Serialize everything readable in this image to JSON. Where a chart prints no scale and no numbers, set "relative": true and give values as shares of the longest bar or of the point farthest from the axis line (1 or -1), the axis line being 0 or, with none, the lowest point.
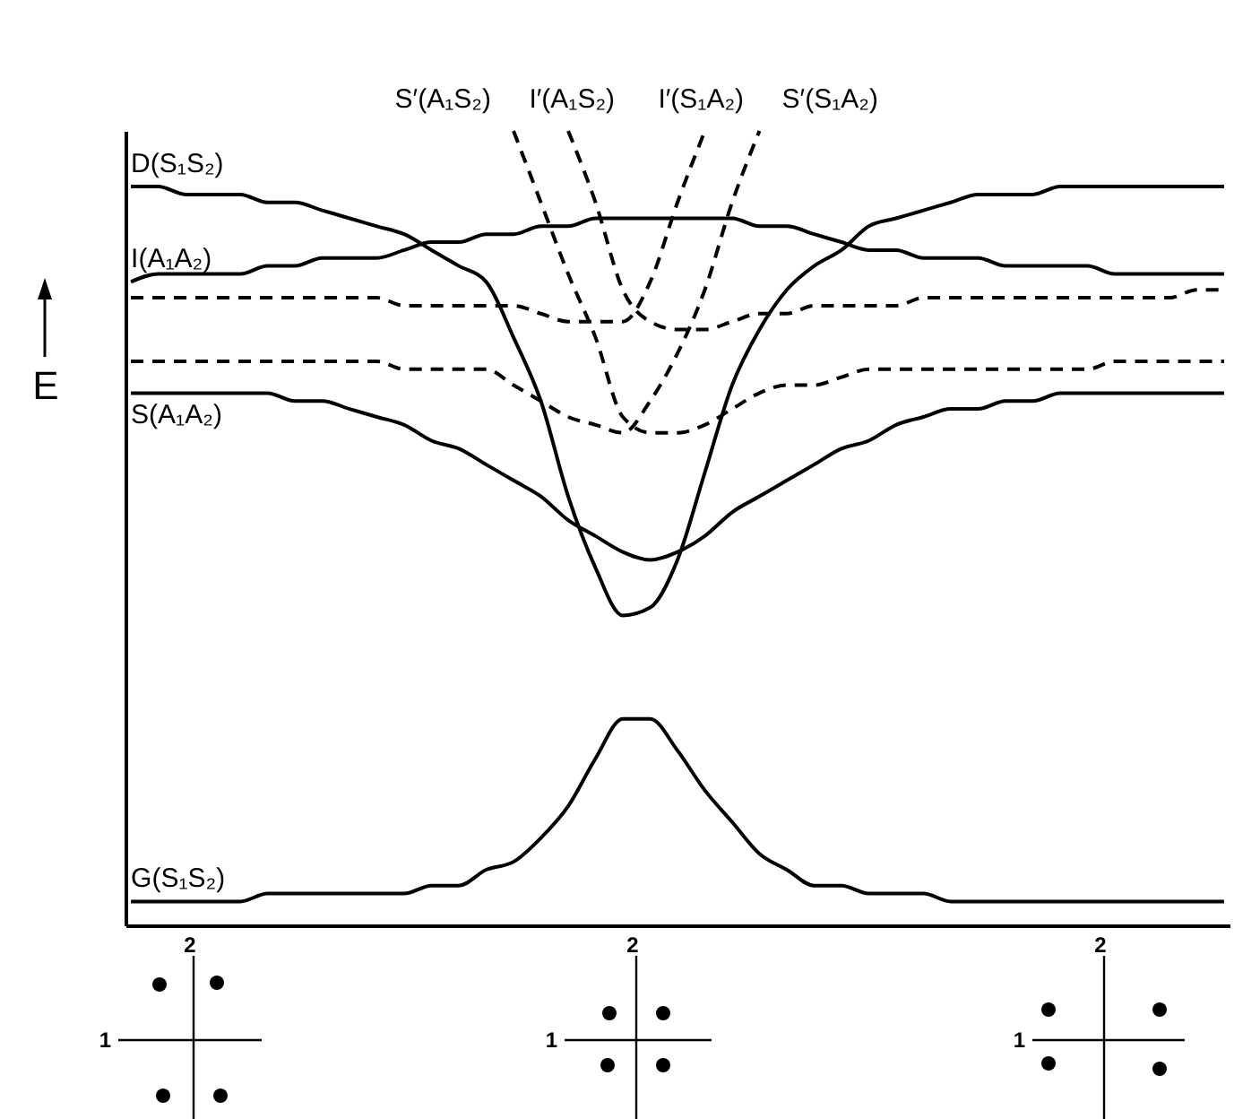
{
  "chart_data": {
    "type": "line",
    "relative": true,
    "ylabel": "E",
    "categories": [
      null,
      null,
      null,
      null,
      null,
      null,
      null,
      null,
      null,
      null,
      null,
      null,
      null,
      null,
      null,
      null,
      null,
      null,
      null,
      null,
      null,
      null,
      null,
      null,
      null,
      null,
      null,
      null,
      null,
      null,
      null,
      null,
      null,
      null,
      null,
      null,
      null,
      null,
      null,
      null,
      null
    ],
    "series": [
      {
        "name": "D(S₁S₂)",
        "color": "#000000",
        "line_style": "solid",
        "values": [
          0.93,
          0.93,
          0.92,
          0.92,
          0.92,
          0.91,
          0.91,
          0.9,
          0.89,
          0.88,
          0.87,
          0.85,
          0.83,
          0.81,
          0.74,
          0.66,
          0.54,
          0.45,
          0.39,
          0.4,
          0.46,
          0.57,
          0.68,
          0.75,
          0.8,
          0.83,
          0.85,
          0.88,
          0.89,
          0.9,
          0.91,
          0.92,
          0.92,
          0.92,
          0.93,
          0.93,
          0.93,
          0.93,
          0.93,
          0.93,
          0.93
        ]
      },
      {
        "name": "I(A₁A₂)",
        "color": "#000000",
        "line_style": "solid",
        "values": [
          0.81,
          0.82,
          0.82,
          0.82,
          0.82,
          0.83,
          0.83,
          0.84,
          0.84,
          0.84,
          0.85,
          0.86,
          0.86,
          0.87,
          0.87,
          0.88,
          0.88,
          0.89,
          0.89,
          0.89,
          0.89,
          0.89,
          0.89,
          0.88,
          0.88,
          0.87,
          0.86,
          0.85,
          0.85,
          0.84,
          0.84,
          0.84,
          0.83,
          0.83,
          0.83,
          0.83,
          0.82,
          0.82,
          0.82,
          0.82,
          0.82
        ]
      },
      {
        "name": "S(A₁A₂)",
        "color": "#000000",
        "line_style": "solid",
        "values": [
          0.67,
          0.67,
          0.67,
          0.67,
          0.67,
          0.67,
          0.66,
          0.66,
          0.65,
          0.64,
          0.63,
          0.61,
          0.6,
          0.58,
          0.56,
          0.54,
          0.51,
          0.49,
          0.47,
          0.46,
          0.47,
          0.49,
          0.52,
          0.54,
          0.56,
          0.58,
          0.6,
          0.61,
          0.63,
          0.64,
          0.65,
          0.65,
          0.66,
          0.66,
          0.67,
          0.67,
          0.67,
          0.67,
          0.67,
          0.67,
          0.67
        ]
      },
      {
        "name": "G(S₁S₂)",
        "color": "#000000",
        "line_style": "solid",
        "values": [
          0.03,
          0.03,
          0.03,
          0.03,
          0.03,
          0.04,
          0.04,
          0.04,
          0.04,
          0.04,
          0.04,
          0.05,
          0.05,
          0.07,
          0.08,
          0.11,
          0.15,
          0.21,
          0.26,
          0.26,
          0.22,
          0.17,
          0.13,
          0.09,
          0.07,
          0.05,
          0.05,
          0.04,
          0.04,
          0.04,
          0.03,
          0.03,
          0.03,
          0.03,
          0.03,
          0.03,
          0.03,
          0.03,
          0.03,
          0.03,
          0.03
        ]
      },
      {
        "name": "S′(A₁S₂)",
        "color": "#000000",
        "line_style": "dashed",
        "values": [
          null,
          null,
          null,
          null,
          null,
          null,
          null,
          null,
          null,
          null,
          null,
          null,
          null,
          null,
          1.0,
          0.91,
          0.82,
          0.74,
          0.64,
          0.62,
          0.62,
          0.63,
          0.65,
          0.67,
          0.68,
          0.68,
          0.69,
          0.7,
          0.7,
          0.7,
          0.7,
          0.7,
          0.7,
          0.7,
          0.7,
          0.7,
          0.71,
          0.71,
          0.71,
          0.71,
          0.71
        ]
      },
      {
        "name": "I′(A₁S₂)",
        "color": "#000000",
        "line_style": "dashed",
        "values": [
          null,
          null,
          null,
          null,
          null,
          null,
          null,
          null,
          null,
          null,
          null,
          null,
          null,
          null,
          null,
          null,
          1.0,
          0.91,
          0.8,
          0.76,
          0.75,
          0.75,
          0.76,
          0.77,
          0.77,
          0.78,
          0.78,
          0.78,
          0.78,
          0.79,
          0.79,
          0.79,
          0.79,
          0.79,
          0.79,
          0.79,
          0.79,
          0.79,
          0.79,
          0.8,
          0.8
        ]
      },
      {
        "name": "I′(S₁A₂)",
        "color": "#000000",
        "line_style": "dashed",
        "values": [
          0.79,
          0.79,
          0.79,
          0.79,
          0.79,
          0.79,
          0.79,
          0.79,
          0.79,
          0.79,
          0.78,
          0.78,
          0.78,
          0.78,
          0.78,
          0.77,
          0.76,
          0.76,
          0.76,
          0.81,
          0.91,
          1.0,
          null,
          null,
          null,
          null,
          null,
          null,
          null,
          null,
          null,
          null,
          null,
          null,
          null,
          null,
          null,
          null,
          null,
          null,
          null
        ]
      },
      {
        "name": "S′(S₁A₂)",
        "color": "#000000",
        "line_style": "dashed",
        "values": [
          0.71,
          0.71,
          0.71,
          0.71,
          0.71,
          0.71,
          0.71,
          0.71,
          0.71,
          0.71,
          0.7,
          0.7,
          0.7,
          0.7,
          0.68,
          0.66,
          0.64,
          0.63,
          0.62,
          0.66,
          0.72,
          0.8,
          0.91,
          1.0,
          null,
          null,
          null,
          null,
          null,
          null,
          null,
          null,
          null,
          null,
          null,
          null,
          null,
          null,
          null,
          null,
          null
        ]
      }
    ],
    "annotations": [
      "2",
      "1",
      "2",
      "1",
      "2",
      "1"
    ]
  }
}
